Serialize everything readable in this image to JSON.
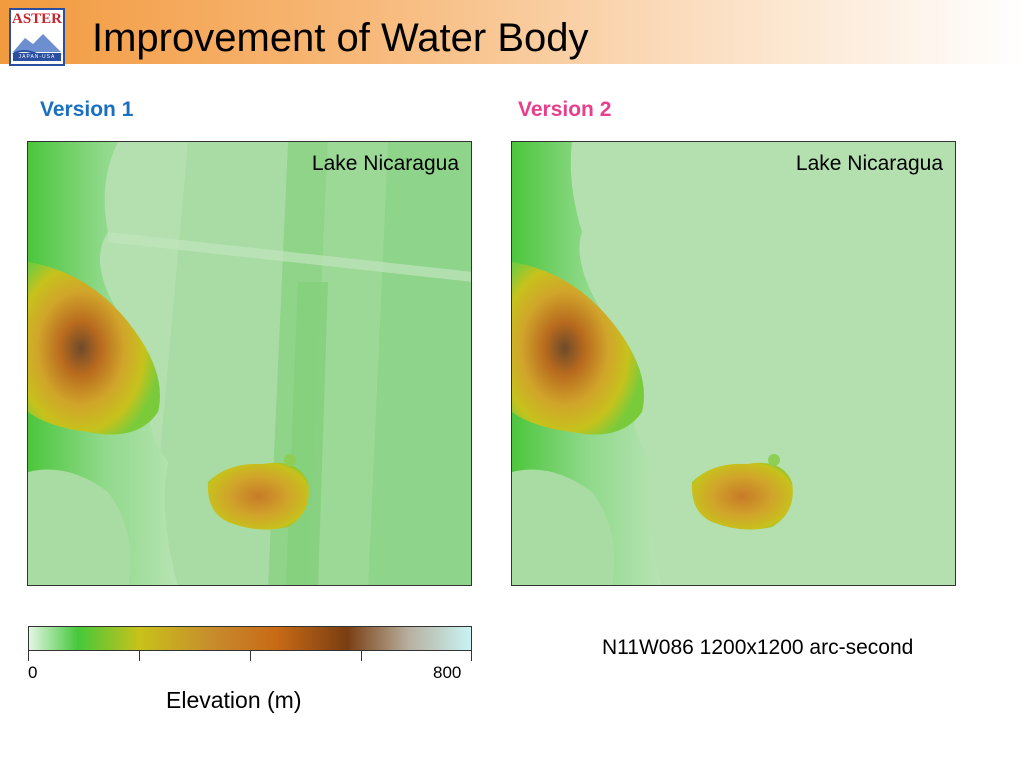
{
  "slide": {
    "title": "Improvement of Water Body",
    "logo_text": "ASTER",
    "logo_band_text": "JAPAN-USA"
  },
  "maps": [
    {
      "version_label": "Version 1",
      "version_color": "#1a6fc1",
      "place_label": "Lake Nicaragua",
      "water_fill": "striped"
    },
    {
      "version_label": "Version 2",
      "version_color": "#e83e8c",
      "place_label": "Lake Nicaragua",
      "water_fill": "uniform"
    }
  ],
  "colorbar": {
    "title": "Elevation (m)",
    "min_label": "0",
    "max_label": "800",
    "range": [
      0,
      800
    ],
    "colors": [
      "#e4f6e4",
      "#45c83a",
      "#c8c21a",
      "#c78a2c",
      "#c86a16",
      "#7a3e12",
      "#b8b0a0",
      "#c8f4f4"
    ]
  },
  "tile_note": "N11W086 1200x1200 arc-second"
}
